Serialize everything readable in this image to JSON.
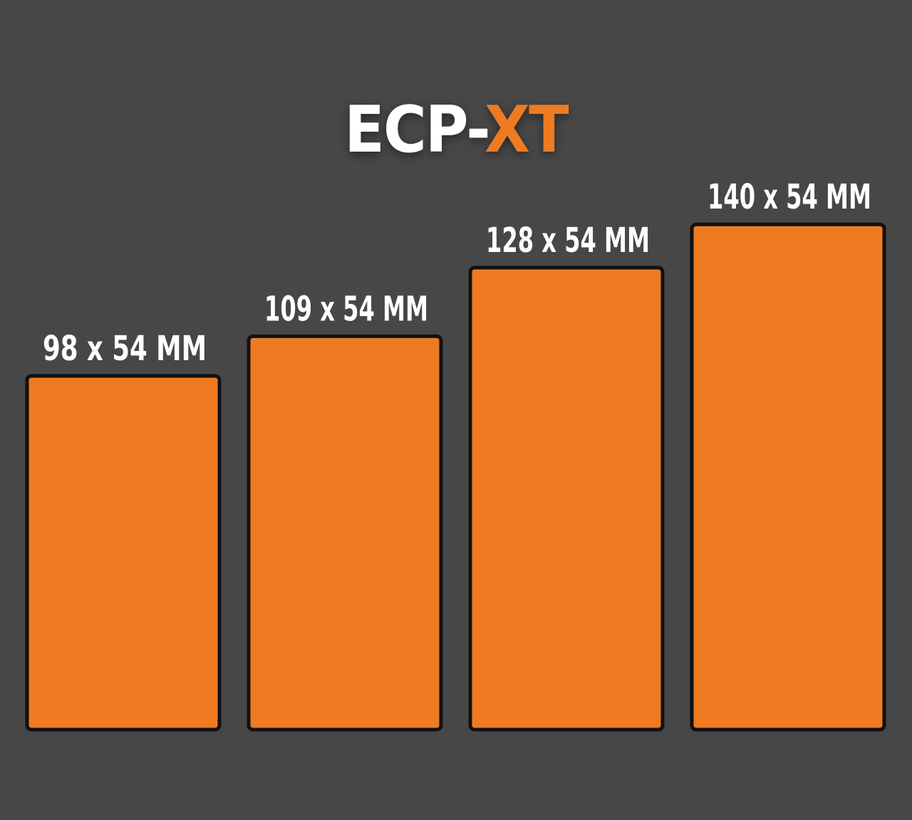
{
  "chart_data": {
    "type": "bar",
    "title_main": "ECP-",
    "title_accent": "XT",
    "categories": [
      "98 x 54 MM",
      "109 x 54 MM",
      "128 x 54 MM",
      "140 x 54 MM"
    ],
    "values": [
      98,
      109,
      128,
      140
    ],
    "unit": "MM",
    "xlabel": "",
    "ylabel": "",
    "grid": false,
    "bar_color": "#ee7b22",
    "border_color": "#111111",
    "background": "#474747"
  }
}
